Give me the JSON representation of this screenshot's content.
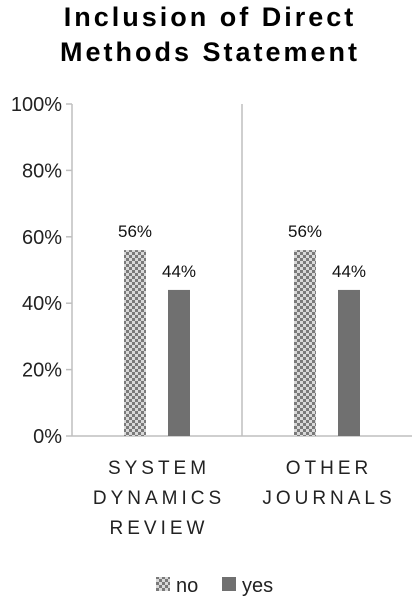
{
  "chart_data": {
    "type": "bar",
    "title": [
      "Inclusion of Direct",
      "Methods Statement"
    ],
    "categories": [
      [
        "SYSTEM",
        "DYNAMICS",
        "REVIEW"
      ],
      [
        "OTHER",
        "JOURNALS"
      ]
    ],
    "series": [
      {
        "name": "no",
        "values": [
          56,
          56
        ],
        "labels": [
          "56%",
          "56%"
        ],
        "pattern": "checker"
      },
      {
        "name": "yes",
        "values": [
          44,
          44
        ],
        "labels": [
          "44%",
          "44%"
        ],
        "color": "#707070"
      }
    ],
    "yticks": [
      0,
      20,
      40,
      60,
      80,
      100
    ],
    "ytick_labels": [
      "0%",
      "20%",
      "40%",
      "60%",
      "80%",
      "100%"
    ],
    "ylim": [
      0,
      100
    ],
    "legend": "bottom",
    "grid": false,
    "colors": {
      "axis": "#bfbfbf",
      "yes": "#707070",
      "checker_dark": "#7a7a7a",
      "checker_light": "#d9d9d9"
    }
  }
}
